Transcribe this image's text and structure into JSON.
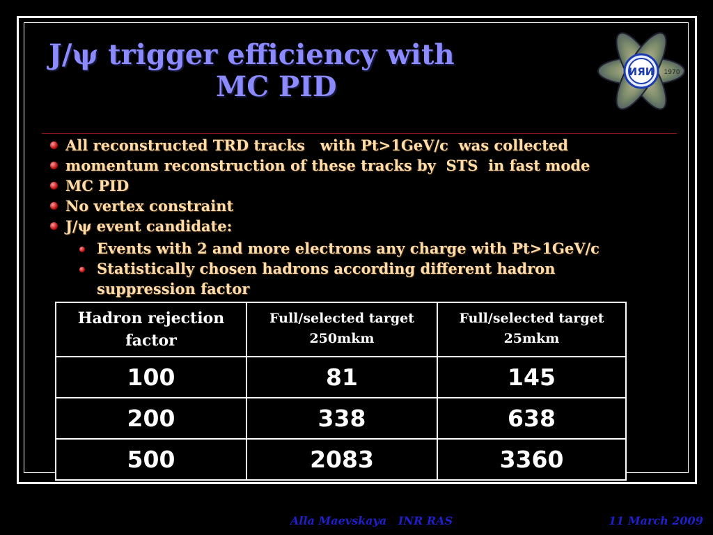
{
  "slide": {
    "title_line1": "J/ψ trigger efficiency with",
    "title_line2": "MC PID"
  },
  "logo": {
    "icon": "inr-institute-logo",
    "text": "ИЯИ",
    "year": "1970"
  },
  "bullets": [
    {
      "text": "All reconstructed TRD tracks   with Pt>1GeV/c  was collected"
    },
    {
      "text": "momentum reconstruction of these tracks by  STS  in fast mode"
    },
    {
      "text": "MC PID"
    },
    {
      "text": "No vertex constraint"
    },
    {
      "text": "J/ψ event candidate:"
    }
  ],
  "sub_bullets": [
    {
      "text": "Events with 2 and more electrons any charge with Pt>1GeV/c"
    },
    {
      "text": "Statistically chosen hadrons according different hadron suppression factor"
    }
  ],
  "table": {
    "headers": [
      "Hadron rejection factor",
      "Full/selected target 250mkm",
      "Full/selected target 25mkm"
    ],
    "rows": [
      [
        "100",
        "81",
        "145"
      ],
      [
        "200",
        "338",
        "638"
      ],
      [
        "500",
        "2083",
        "3360"
      ]
    ]
  },
  "footer": {
    "author": "Alla Maevskaya   INR RAS",
    "date": "11 March 2009"
  },
  "colors": {
    "title": "#8b8bff",
    "bullet_text": "#ffdca8",
    "bullet_dot": "#c01010",
    "footer": "#1f1fcc",
    "background": "#000000"
  }
}
